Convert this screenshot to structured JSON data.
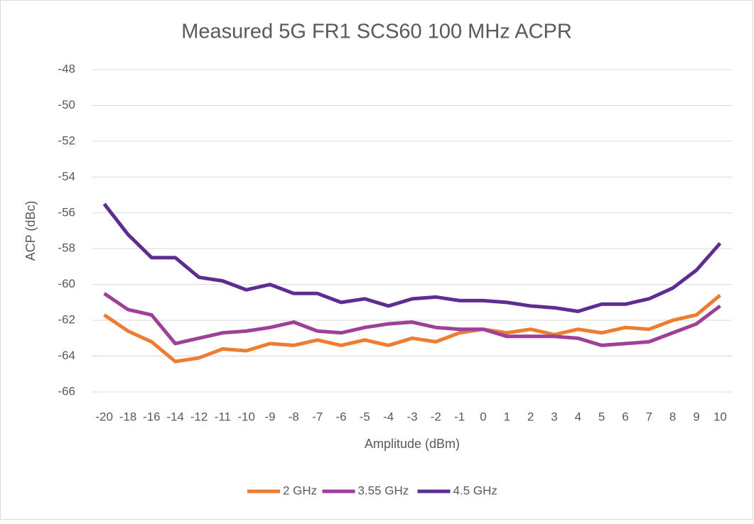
{
  "chart_data": {
    "type": "line",
    "title": "Measured 5G FR1 SCS60 100 MHz ACPR",
    "x_label": "Amplitude (dBm)",
    "y_label": "ACP (dBc)",
    "categories": [
      "-20",
      "-18",
      "-16",
      "-14",
      "-12",
      "-11",
      "-10",
      "-9",
      "-8",
      "-7",
      "-6",
      "-5",
      "-4",
      "-3",
      "-2",
      "-1",
      "0",
      "1",
      "2",
      "3",
      "4",
      "5",
      "6",
      "7",
      "8",
      "9",
      "10"
    ],
    "series": [
      {
        "name": "2 GHz",
        "color": "#ed7d31",
        "values": [
          -61.7,
          -62.6,
          -63.2,
          -64.3,
          -64.1,
          -63.6,
          -63.7,
          -63.3,
          -63.4,
          -63.1,
          -63.4,
          -63.1,
          -63.4,
          -63.0,
          -63.2,
          -62.7,
          -62.5,
          -62.7,
          -62.5,
          -62.8,
          -62.5,
          -62.7,
          -62.4,
          -62.5,
          -62.0,
          -61.7,
          -60.6
        ]
      },
      {
        "name": "3.55 GHz",
        "color": "#9e3f98",
        "values": [
          -60.5,
          -61.4,
          -61.7,
          -63.3,
          -63.0,
          -62.7,
          -62.6,
          -62.4,
          -62.1,
          -62.6,
          -62.7,
          -62.4,
          -62.2,
          -62.1,
          -62.4,
          -62.5,
          -62.5,
          -62.9,
          -62.9,
          -62.9,
          -63.0,
          -63.4,
          -63.3,
          -63.2,
          -62.7,
          -62.2,
          -61.2
        ]
      },
      {
        "name": "4.5 GHz",
        "color": "#5e2d91",
        "values": [
          -55.5,
          -57.2,
          -58.5,
          -58.5,
          -59.6,
          -59.8,
          -60.3,
          -60.0,
          -60.5,
          -60.5,
          -61.0,
          -60.8,
          -61.2,
          -60.8,
          -60.7,
          -60.9,
          -60.9,
          -61.0,
          -61.2,
          -61.3,
          -61.5,
          -61.1,
          -61.1,
          -60.8,
          -60.2,
          -59.2,
          -57.7
        ]
      }
    ],
    "ylim": [
      -66,
      -48
    ],
    "yticks": [
      -66,
      -64,
      -62,
      -60,
      -58,
      -56,
      -54,
      -52,
      -50,
      -48
    ],
    "grid": true,
    "legend": "bottom"
  }
}
